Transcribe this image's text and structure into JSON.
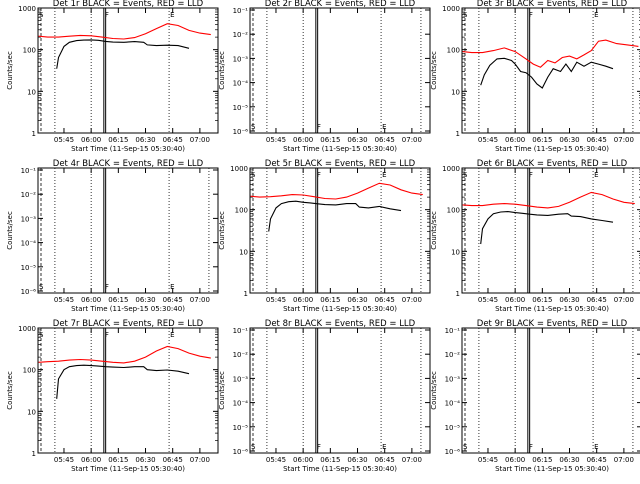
{
  "figure": {
    "panels": [
      {
        "title": "Det 1r BLACK = Events, RED = LLD"
      },
      {
        "title": "Det 2r BLACK = Events, RED = LLD"
      },
      {
        "title": "Det 3r BLACK = Events, RED = LLD"
      },
      {
        "title": "Det 4r BLACK = Events, RED = LLD"
      },
      {
        "title": "Det 5r BLACK = Events, RED = LLD"
      },
      {
        "title": "Det 6r BLACK = Events, RED = LLD"
      },
      {
        "title": "Det 7r BLACK = Events, RED = LLD"
      },
      {
        "title": "Det 8r BLACK = Events, RED = LLD"
      },
      {
        "title": "Det 9r BLACK = Events, RED = LLD"
      }
    ]
  },
  "colors": {
    "events": "#000000",
    "lld": "#ff0000",
    "axes": "#000000"
  },
  "chart_data": [
    {
      "type": "line",
      "title": "Det 1r BLACK = Events, RED = LLD",
      "xlabel": "Start Time (11-Sep-15 05:30:40)",
      "ylabel": "Counts/sec",
      "scale": "log",
      "ylim": [
        1,
        1000
      ],
      "yticks": [
        "1",
        "10",
        "100",
        "1000"
      ],
      "xticks": [
        "05:45",
        "06:00",
        "06:15",
        "06:30",
        "06:45",
        "07:00"
      ],
      "xlim": [
        "05:30:40",
        "07:10"
      ],
      "dotted_lines": [
        "05:40",
        "06:00",
        "06:43"
      ],
      "solid_lines": [
        "06:07",
        "06:08"
      ],
      "markers": [
        {
          "text": "S",
          "x": "05:31"
        },
        {
          "text": "F",
          "x": "06:07"
        },
        {
          "text": "E",
          "x": "06:43"
        }
      ],
      "series": [
        {
          "name": "BLACK = Events",
          "x": [
            "05:41",
            "05:42",
            "05:45",
            "05:48",
            "05:52",
            "05:56",
            "06:00",
            "06:04",
            "06:08",
            "06:12",
            "06:18",
            "06:24",
            "06:29",
            "06:31",
            "06:36",
            "06:42",
            "06:48",
            "06:54"
          ],
          "y": [
            35,
            65,
            120,
            150,
            165,
            170,
            172,
            168,
            158,
            152,
            150,
            156,
            150,
            130,
            125,
            128,
            125,
            108
          ]
        },
        {
          "name": "RED = LLD",
          "x": [
            "05:31",
            "05:36",
            "05:42",
            "05:48",
            "05:54",
            "06:00",
            "06:06",
            "06:12",
            "06:18",
            "06:24",
            "06:30",
            "06:36",
            "06:42",
            "06:48",
            "06:54",
            "07:00",
            "07:06"
          ],
          "y": [
            210,
            200,
            200,
            210,
            220,
            215,
            200,
            185,
            180,
            195,
            240,
            320,
            420,
            380,
            290,
            250,
            230
          ]
        }
      ]
    },
    {
      "type": "line",
      "title": "Det 2r BLACK = Events, RED = LLD",
      "xlabel": "Start Time (11-Sep-15 05:30:40)",
      "ylabel": "Counts/sec",
      "scale": "log",
      "yticks": [
        "10⁻¹",
        "10⁻²",
        "10⁻³",
        "10⁻⁴",
        "10⁻⁵",
        "10⁻⁶"
      ],
      "xticks": [
        "05:45",
        "06:00",
        "06:15",
        "06:30",
        "06:45",
        "07:00"
      ],
      "xlim": [
        "05:30:40",
        "07:10"
      ],
      "dotted_lines": [
        "05:40",
        "06:00",
        "06:43",
        "07:05"
      ],
      "solid_lines": [
        "06:07",
        "06:08"
      ],
      "markers": [
        {
          "text": "S",
          "x": "05:31"
        },
        {
          "text": "F",
          "x": "06:07"
        },
        {
          "text": "E",
          "x": "06:43"
        }
      ],
      "series": []
    },
    {
      "type": "line",
      "title": "Det 3r BLACK = Events, RED = LLD",
      "xlabel": "Start Time (11-Sep-15 05:30:40)",
      "ylabel": "Counts/sec",
      "scale": "log",
      "ylim": [
        1,
        1000
      ],
      "yticks": [
        "1",
        "10",
        "100",
        "1000"
      ],
      "xticks": [
        "05:45",
        "06:00",
        "06:15",
        "06:30",
        "06:45",
        "07:00"
      ],
      "xlim": [
        "05:30:40",
        "07:10"
      ],
      "dotted_lines": [
        "05:40",
        "06:00",
        "06:43",
        "07:05"
      ],
      "solid_lines": [
        "06:07",
        "06:08"
      ],
      "markers": [
        {
          "text": "S",
          "x": "05:31"
        },
        {
          "text": "F",
          "x": "06:07"
        },
        {
          "text": "E",
          "x": "06:43"
        }
      ],
      "series": [
        {
          "name": "BLACK = Events",
          "x": [
            "05:41",
            "05:43",
            "05:46",
            "05:50",
            "05:54",
            "05:58",
            "06:00",
            "06:03",
            "06:06",
            "06:09",
            "06:12",
            "06:15",
            "06:18",
            "06:21",
            "06:25",
            "06:28",
            "06:31",
            "06:34",
            "06:38",
            "06:42",
            "06:46",
            "06:50",
            "06:54"
          ],
          "y": [
            14,
            25,
            42,
            60,
            62,
            55,
            45,
            30,
            28,
            22,
            15,
            12,
            22,
            35,
            30,
            45,
            30,
            50,
            40,
            50,
            45,
            40,
            35
          ]
        },
        {
          "name": "RED = LLD",
          "x": [
            "05:31",
            "05:36",
            "05:42",
            "05:48",
            "05:54",
            "06:00",
            "06:06",
            "06:10",
            "06:14",
            "06:18",
            "06:22",
            "06:26",
            "06:30",
            "06:34",
            "06:38",
            "06:42",
            "06:46",
            "06:50",
            "06:56",
            "07:02",
            "07:08"
          ],
          "y": [
            90,
            85,
            85,
            95,
            110,
            90,
            60,
            45,
            38,
            55,
            48,
            65,
            70,
            60,
            75,
            95,
            160,
            170,
            140,
            130,
            120
          ]
        }
      ]
    },
    {
      "type": "line",
      "title": "Det 4r BLACK = Events, RED = LLD",
      "xlabel": "Start Time (11-Sep-15 05:30:40)",
      "ylabel": "Counts/sec",
      "scale": "log",
      "yticks": [
        "10⁻¹",
        "10⁻²",
        "10⁻³",
        "10⁻⁴",
        "10⁻⁵",
        "10⁻⁶"
      ],
      "xticks": [
        "05:45",
        "06:00",
        "06:15",
        "06:30",
        "06:45",
        "07:00"
      ],
      "xlim": [
        "05:30:40",
        "07:10"
      ],
      "dotted_lines": [
        "05:40",
        "06:00",
        "06:43",
        "07:05"
      ],
      "solid_lines": [
        "06:07",
        "06:08"
      ],
      "markers": [
        {
          "text": "S",
          "x": "05:31"
        },
        {
          "text": "F",
          "x": "06:07"
        },
        {
          "text": "E",
          "x": "06:43"
        }
      ],
      "series": []
    },
    {
      "type": "line",
      "title": "Det 5r BLACK = Events, RED = LLD",
      "xlabel": "Start Time (11-Sep-15 05:30:40)",
      "ylabel": "Counts/sec",
      "scale": "log",
      "ylim": [
        1,
        1000
      ],
      "yticks": [
        "1",
        "10",
        "100",
        "1000"
      ],
      "xticks": [
        "05:45",
        "06:00",
        "06:15",
        "06:30",
        "06:45",
        "07:00"
      ],
      "xlim": [
        "05:30:40",
        "07:10"
      ],
      "dotted_lines": [
        "05:40",
        "06:00",
        "06:43",
        "07:05"
      ],
      "solid_lines": [
        "06:07",
        "06:08"
      ],
      "markers": [
        {
          "text": "S",
          "x": "05:31"
        },
        {
          "text": "F",
          "x": "06:07"
        },
        {
          "text": "E",
          "x": "06:43"
        }
      ],
      "series": [
        {
          "name": "BLACK = Events",
          "x": [
            "05:41",
            "05:42",
            "05:45",
            "05:48",
            "05:52",
            "05:56",
            "06:00",
            "06:04",
            "06:08",
            "06:12",
            "06:18",
            "06:24",
            "06:29",
            "06:31",
            "06:36",
            "06:42",
            "06:48",
            "06:54"
          ],
          "y": [
            30,
            60,
            110,
            140,
            155,
            160,
            150,
            145,
            138,
            132,
            130,
            140,
            140,
            115,
            110,
            120,
            105,
            95
          ]
        },
        {
          "name": "RED = LLD",
          "x": [
            "05:31",
            "05:36",
            "05:42",
            "05:48",
            "05:54",
            "06:00",
            "06:06",
            "06:12",
            "06:18",
            "06:24",
            "06:30",
            "06:36",
            "06:42",
            "06:48",
            "06:54",
            "07:00",
            "07:06"
          ],
          "y": [
            210,
            200,
            205,
            215,
            230,
            225,
            205,
            185,
            180,
            200,
            250,
            330,
            430,
            390,
            300,
            250,
            230
          ]
        }
      ]
    },
    {
      "type": "line",
      "title": "Det 6r BLACK = Events, RED = LLD",
      "xlabel": "Start Time (11-Sep-15 05:30:40)",
      "ylabel": "Counts/sec",
      "scale": "log",
      "ylim": [
        1,
        1000
      ],
      "yticks": [
        "1",
        "10",
        "100",
        "1000"
      ],
      "xticks": [
        "05:45",
        "06:00",
        "06:15",
        "06:30",
        "06:45",
        "07:00"
      ],
      "xlim": [
        "05:30:40",
        "07:10"
      ],
      "dotted_lines": [
        "05:40",
        "06:00",
        "06:43",
        "07:05"
      ],
      "solid_lines": [
        "06:07",
        "06:08"
      ],
      "markers": [
        {
          "text": "S",
          "x": "05:31"
        },
        {
          "text": "F",
          "x": "06:07"
        },
        {
          "text": "E",
          "x": "06:43"
        }
      ],
      "series": [
        {
          "name": "BLACK = Events",
          "x": [
            "05:41",
            "05:42",
            "05:45",
            "05:48",
            "05:52",
            "05:56",
            "06:00",
            "06:04",
            "06:08",
            "06:12",
            "06:18",
            "06:24",
            "06:29",
            "06:31",
            "06:36",
            "06:42",
            "06:48",
            "06:54"
          ],
          "y": [
            15,
            35,
            60,
            80,
            88,
            90,
            85,
            82,
            78,
            75,
            73,
            78,
            80,
            70,
            68,
            60,
            55,
            50
          ]
        },
        {
          "name": "RED = LLD",
          "x": [
            "05:31",
            "05:36",
            "05:42",
            "05:48",
            "05:54",
            "06:00",
            "06:06",
            "06:12",
            "06:18",
            "06:24",
            "06:30",
            "06:36",
            "06:42",
            "06:48",
            "06:54",
            "07:00",
            "07:06"
          ],
          "y": [
            130,
            125,
            125,
            135,
            140,
            135,
            125,
            115,
            110,
            120,
            150,
            200,
            260,
            230,
            180,
            150,
            140
          ]
        }
      ]
    },
    {
      "type": "line",
      "title": "Det 7r BLACK = Events, RED = LLD",
      "xlabel": "Start Time (11-Sep-15 05:30:40)",
      "ylabel": "Counts/sec",
      "scale": "log",
      "ylim": [
        1,
        1000
      ],
      "yticks": [
        "1",
        "10",
        "100",
        "1000"
      ],
      "xticks": [
        "05:45",
        "06:00",
        "06:15",
        "06:30",
        "06:45",
        "07:00"
      ],
      "xlim": [
        "05:30:40",
        "07:10"
      ],
      "dotted_lines": [
        "05:40",
        "06:00",
        "06:43"
      ],
      "solid_lines": [
        "06:07",
        "06:08"
      ],
      "markers": [
        {
          "text": "S",
          "x": "05:31"
        },
        {
          "text": "F",
          "x": "06:07"
        },
        {
          "text": "E",
          "x": "06:43"
        }
      ],
      "series": [
        {
          "name": "BLACK = Events",
          "x": [
            "05:41",
            "05:42",
            "05:45",
            "05:48",
            "05:52",
            "05:56",
            "06:00",
            "06:04",
            "06:08",
            "06:12",
            "06:18",
            "06:24",
            "06:29",
            "06:31",
            "06:36",
            "06:42",
            "06:48",
            "06:54"
          ],
          "y": [
            20,
            60,
            100,
            118,
            125,
            128,
            125,
            122,
            118,
            115,
            113,
            118,
            118,
            100,
            95,
            98,
            92,
            80
          ]
        },
        {
          "name": "RED = LLD",
          "x": [
            "05:31",
            "05:36",
            "05:42",
            "05:48",
            "05:54",
            "06:00",
            "06:06",
            "06:12",
            "06:18",
            "06:24",
            "06:30",
            "06:36",
            "06:42",
            "06:48",
            "06:54",
            "07:00",
            "07:06"
          ],
          "y": [
            150,
            155,
            160,
            170,
            175,
            170,
            160,
            150,
            145,
            160,
            200,
            280,
            360,
            320,
            250,
            210,
            190
          ]
        }
      ]
    },
    {
      "type": "line",
      "title": "Det 8r BLACK = Events, RED = LLD",
      "xlabel": "Start Time (11-Sep-15 05:30:40)",
      "ylabel": "Counts/sec",
      "scale": "log",
      "yticks": [
        "10⁻¹",
        "10⁻²",
        "10⁻³",
        "10⁻⁴",
        "10⁻⁵",
        "10⁻⁶"
      ],
      "xticks": [
        "05:45",
        "06:00",
        "06:15",
        "06:30",
        "06:45",
        "07:00"
      ],
      "xlim": [
        "05:30:40",
        "07:10"
      ],
      "dotted_lines": [
        "05:40",
        "06:00",
        "06:43",
        "07:05"
      ],
      "solid_lines": [
        "06:07",
        "06:08"
      ],
      "markers": [
        {
          "text": "S",
          "x": "05:31"
        },
        {
          "text": "F",
          "x": "06:07"
        },
        {
          "text": "E",
          "x": "06:43"
        }
      ],
      "series": []
    },
    {
      "type": "line",
      "title": "Det 9r BLACK = Events, RED = LLD",
      "xlabel": "Start Time (11-Sep-15 05:30:40)",
      "ylabel": "Counts/sec",
      "scale": "log",
      "yticks": [
        "10⁻¹",
        "10⁻²",
        "10⁻³",
        "10⁻⁴",
        "10⁻⁵",
        "10⁻⁶"
      ],
      "xticks": [
        "05:45",
        "06:00",
        "06:15",
        "06:30",
        "06:45",
        "07:00"
      ],
      "xlim": [
        "05:30:40",
        "07:10"
      ],
      "dotted_lines": [
        "05:40",
        "06:00",
        "06:43",
        "07:05"
      ],
      "solid_lines": [
        "06:07",
        "06:08"
      ],
      "markers": [
        {
          "text": "S",
          "x": "05:31"
        },
        {
          "text": "F",
          "x": "06:07"
        },
        {
          "text": "E",
          "x": "06:43"
        }
      ],
      "series": []
    }
  ]
}
